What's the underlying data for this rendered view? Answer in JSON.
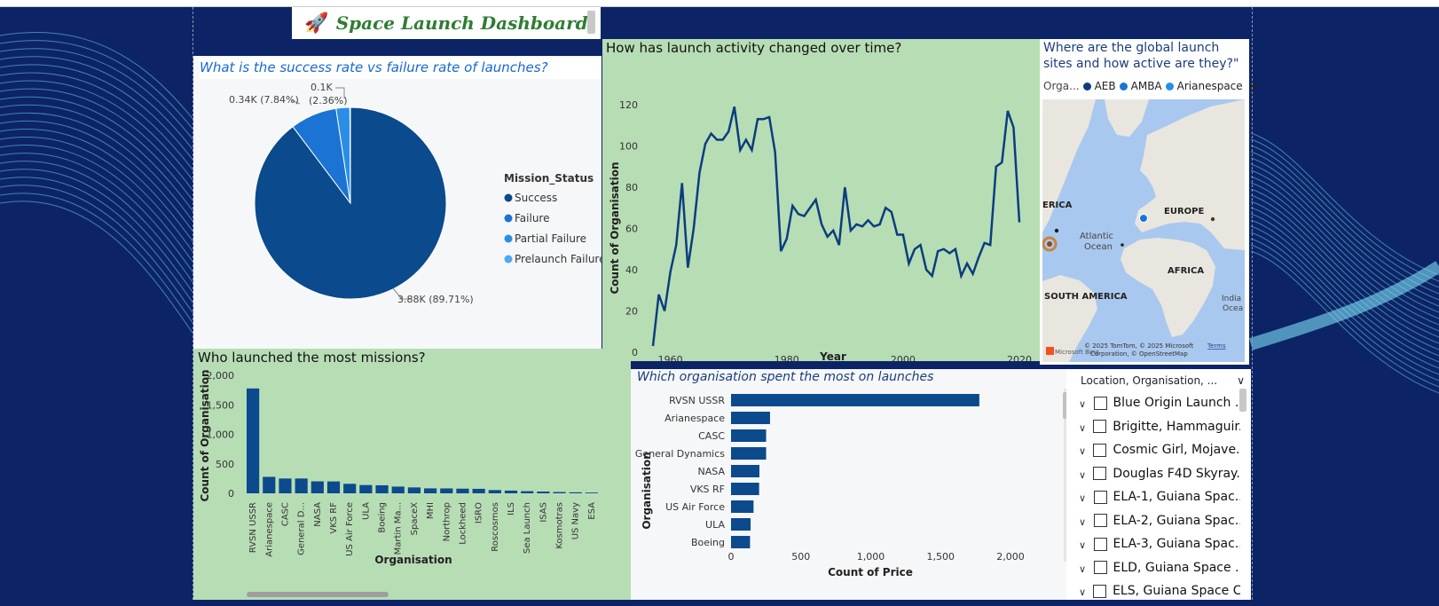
{
  "dashboard": {
    "title": "Space Launch Dashboard",
    "rocket_icon": "rocket-icon"
  },
  "pie": {
    "question": "What is the success rate vs failure rate of launches?",
    "legend_title": "Mission_Status",
    "labels": {
      "success": "3.88K (89.71%)",
      "failure": "0.34K (7.84%)",
      "partial_v": "0.1K",
      "partial_p": "(2.36%)"
    },
    "colors": {
      "success": "#0b4a8c",
      "failure": "#1b73d3",
      "partial": "#2a8de6",
      "prelaunch": "#4aa9ef"
    },
    "chart_data": {
      "type": "pie",
      "title": "Mission_Status",
      "categories": [
        "Success",
        "Failure",
        "Partial Failure",
        "Prelaunch Failure"
      ],
      "values": [
        3880,
        340,
        100,
        4
      ]
    }
  },
  "line": {
    "question": "How has launch activity changed over time?",
    "chart_data": {
      "type": "line",
      "xlabel": "Year",
      "ylabel": "Count of Organisation",
      "xticks": [
        "1960",
        "1980",
        "2000",
        "2020"
      ],
      "yticks": [
        "0",
        "20",
        "40",
        "60",
        "80",
        "100",
        "120"
      ],
      "xlim": [
        1957,
        2020
      ],
      "ylim": [
        0,
        120
      ],
      "x": [
        1957,
        1958,
        1959,
        1960,
        1961,
        1962,
        1963,
        1964,
        1965,
        1966,
        1967,
        1968,
        1969,
        1970,
        1971,
        1972,
        1973,
        1974,
        1975,
        1976,
        1977,
        1978,
        1979,
        1980,
        1981,
        1982,
        1983,
        1984,
        1985,
        1986,
        1987,
        1988,
        1989,
        1990,
        1991,
        1992,
        1993,
        1994,
        1995,
        1996,
        1997,
        1998,
        1999,
        2000,
        2001,
        2002,
        2003,
        2004,
        2005,
        2006,
        2007,
        2008,
        2009,
        2010,
        2011,
        2012,
        2013,
        2014,
        2015,
        2016,
        2017,
        2018,
        2019,
        2020
      ],
      "y": [
        3,
        28,
        20,
        39,
        52,
        82,
        41,
        60,
        87,
        101,
        106,
        103,
        103,
        107,
        119,
        98,
        103,
        98,
        113,
        113,
        114,
        97,
        49,
        55,
        71,
        67,
        66,
        70,
        74,
        62,
        56,
        59,
        52,
        80,
        59,
        62,
        61,
        64,
        61,
        62,
        70,
        68,
        57,
        57,
        43,
        50,
        52,
        40,
        37,
        49,
        50,
        48,
        50,
        37,
        43,
        38,
        46,
        53,
        52,
        90,
        92,
        117,
        109,
        63
      ]
    },
    "color": "#0b3d7e"
  },
  "map": {
    "question": "Where are the global launch sites and how active are they?\"",
    "legend_label": "Orga...",
    "legend": [
      {
        "name": "AEB",
        "color": "#0b3d7e"
      },
      {
        "name": "AMBA",
        "color": "#1a73d6"
      },
      {
        "name": "Arianespace",
        "color": "#2a8de6"
      }
    ],
    "regions": {
      "na": "ERICA",
      "eu": "EUROPE",
      "ocean1": "Atlantic",
      "ocean2": "Ocean",
      "af": "AFRICA",
      "sa": "SOUTH AMERICA",
      "in1": "India",
      "in2": "Ocea"
    },
    "attribution": "© 2025 TomTom, © 2025 Microsoft",
    "attribution2": "Corporation, © OpenStreetMap",
    "terms": "Terms",
    "bing": "Microsoft Bing"
  },
  "bar": {
    "question": "Who launched the most missions?",
    "color": "#0b4a8c",
    "chart_data": {
      "type": "bar",
      "xlabel": "Organisation",
      "ylabel": "Count of Organisation",
      "yticks": [
        "0",
        "500",
        "1,000",
        "1,500",
        "2,000"
      ],
      "ylim": [
        0,
        2000
      ],
      "categories": [
        "RVSN USSR",
        "Arianespace",
        "CASC",
        "General D...",
        "NASA",
        "VKS RF",
        "US Air Force",
        "ULA",
        "Boeing",
        "Martin Ma...",
        "SpaceX",
        "MHI",
        "Northrop",
        "Lockheed",
        "ISRO",
        "Roscosmos",
        "ILS",
        "Sea Launch",
        "ISAS",
        "Kosmotras",
        "US Navy",
        "ESA"
      ],
      "values": [
        1777,
        279,
        251,
        251,
        203,
        201,
        161,
        140,
        136,
        114,
        100,
        84,
        83,
        79,
        76,
        55,
        46,
        36,
        30,
        22,
        17,
        13
      ]
    }
  },
  "hbar": {
    "question": "Which organisation spent the most on launches",
    "color": "#0b4a8c",
    "chart_data": {
      "type": "bar",
      "orientation": "horizontal",
      "xlabel": "Count of Price",
      "ylabel": "Organisation",
      "xticks": [
        "0",
        "500",
        "1,000",
        "1,500",
        "2,000"
      ],
      "xlim": [
        0,
        2000
      ],
      "categories": [
        "RVSN USSR",
        "Arianespace",
        "CASC",
        "General Dynamics",
        "NASA",
        "VKS RF",
        "US Air Force",
        "ULA",
        "Boeing"
      ],
      "values": [
        1777,
        279,
        251,
        251,
        203,
        201,
        161,
        140,
        136
      ]
    }
  },
  "slicer": {
    "header": "Location, Organisation, ...",
    "items": [
      "Blue Origin Launch ...",
      "Brigitte, Hammaguir...",
      "Cosmic Girl, Mojave...",
      "Douglas F4D Skyray...",
      "ELA-1, Guiana Spac...",
      "ELA-2, Guiana Spac...",
      "ELA-3, Guiana Spac...",
      "ELD, Guiana Space ...",
      "ELS, Guiana Space C..."
    ]
  }
}
